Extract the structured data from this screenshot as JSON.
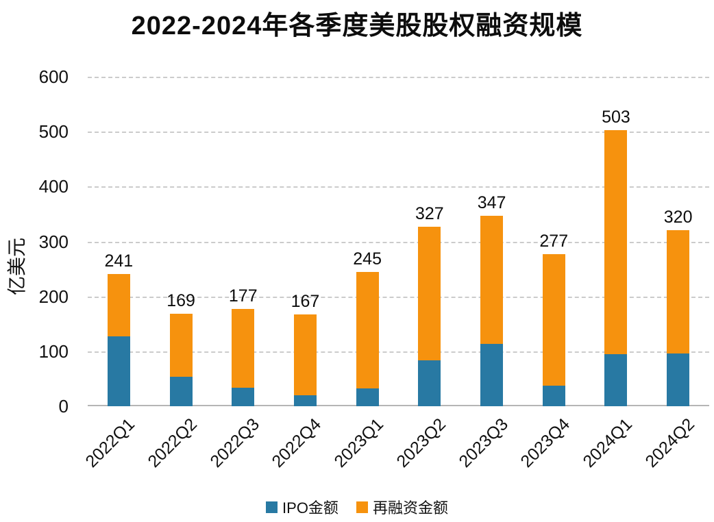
{
  "chart_data": {
    "type": "bar",
    "stacked": true,
    "title": "2022-2024年各季度美股股权融资规模",
    "ylabel": "亿美元",
    "xlabel": "",
    "categories": [
      "2022Q1",
      "2022Q2",
      "2022Q3",
      "2022Q4",
      "2023Q1",
      "2023Q2",
      "2023Q3",
      "2023Q4",
      "2024Q1",
      "2024Q2"
    ],
    "series": [
      {
        "name": "IPO金额",
        "color": "#2879A3",
        "values": [
          127,
          54,
          34,
          20,
          33,
          84,
          113,
          38,
          95,
          96
        ]
      },
      {
        "name": "再融资金额",
        "color": "#F6920E",
        "values": [
          114,
          115,
          143,
          147,
          212,
          243,
          234,
          239,
          408,
          224
        ]
      }
    ],
    "totals": [
      241,
      169,
      177,
      167,
      245,
      327,
      347,
      277,
      503,
      320
    ],
    "ylim": [
      0,
      600
    ],
    "yticks": [
      0,
      100,
      200,
      300,
      400,
      500,
      600
    ],
    "grid": "horizontal-dashed",
    "legend_position": "bottom"
  },
  "style": {
    "grid_color": "#cbcbcb",
    "axis_color": "#b5b5b5",
    "text_color": "#0d0d0d",
    "background": "#ffffff"
  }
}
